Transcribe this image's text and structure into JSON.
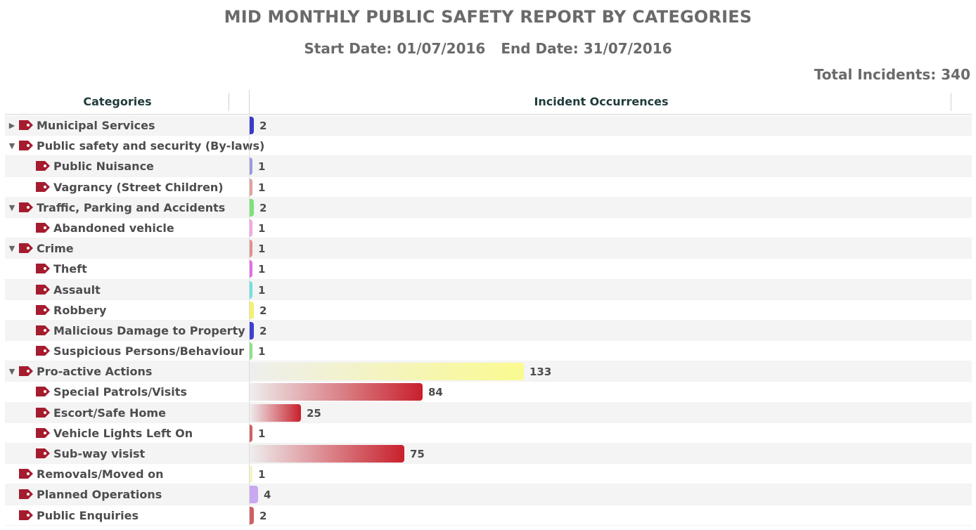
{
  "title": "MID MONTHLY PUBLIC SAFETY REPORT BY CATEGORIES",
  "start_date": "Start Date: 01/07/2016",
  "end_date": "End Date: 31/07/2016",
  "total": "Total Incidents: 340",
  "headers": {
    "categories": "Categories",
    "occurrences": "Incident Occurrences"
  },
  "chart_data": {
    "type": "bar",
    "orientation": "horizontal",
    "title": "MID MONTHLY PUBLIC SAFETY REPORT BY CATEGORIES",
    "xlabel": "Incident Occurrences",
    "ylabel": "Categories",
    "xlim": [
      0,
      133
    ],
    "grid": false,
    "rows": [
      {
        "label": "Municipal Services",
        "level": 0,
        "toggle": "collapsed",
        "value": 2,
        "color": "#3a3ac8",
        "gradient": false
      },
      {
        "label": "Public safety and security (By-laws)",
        "level": 0,
        "toggle": "expanded",
        "value": null,
        "color": "",
        "gradient": false
      },
      {
        "label": "Public Nuisance",
        "level": 1,
        "toggle": "",
        "value": 1,
        "color": "#9a9ae0",
        "gradient": false
      },
      {
        "label": "Vagrancy (Street Children)",
        "level": 1,
        "toggle": "",
        "value": 1,
        "color": "#e0a0a0",
        "gradient": false
      },
      {
        "label": "Traffic, Parking and Accidents",
        "level": 0,
        "toggle": "expanded",
        "value": 2,
        "color": "#7ee07a",
        "gradient": false
      },
      {
        "label": "Abandoned vehicle",
        "level": 1,
        "toggle": "",
        "value": 1,
        "color": "#f0a8e0",
        "gradient": false
      },
      {
        "label": "Crime",
        "level": 0,
        "toggle": "expanded",
        "value": 1,
        "color": "#e09090",
        "gradient": false
      },
      {
        "label": "Theft",
        "level": 1,
        "toggle": "",
        "value": 1,
        "color": "#e070e0",
        "gradient": false
      },
      {
        "label": "Assault",
        "level": 1,
        "toggle": "",
        "value": 1,
        "color": "#70e0e0",
        "gradient": false
      },
      {
        "label": "Robbery",
        "level": 1,
        "toggle": "",
        "value": 2,
        "color": "#f4f070",
        "gradient": false
      },
      {
        "label": "Malicious Damage to Property",
        "level": 1,
        "toggle": "",
        "value": 2,
        "color": "#4040d0",
        "gradient": false
      },
      {
        "label": "Suspicious Persons/Behaviour",
        "level": 1,
        "toggle": "",
        "value": 1,
        "color": "#90e090",
        "gradient": false
      },
      {
        "label": "Pro-active Actions",
        "level": 0,
        "toggle": "expanded",
        "value": 133,
        "color": "#fafa90",
        "gradient": true
      },
      {
        "label": "Special Patrols/Visits",
        "level": 1,
        "toggle": "",
        "value": 84,
        "color": "#c8202c",
        "gradient": true
      },
      {
        "label": "Escort/Safe Home",
        "level": 1,
        "toggle": "",
        "value": 25,
        "color": "#c8202c",
        "gradient": true
      },
      {
        "label": "Vehicle Lights Left On",
        "level": 1,
        "toggle": "",
        "value": 1,
        "color": "#d06060",
        "gradient": false
      },
      {
        "label": "Sub-way visist",
        "level": 1,
        "toggle": "",
        "value": 75,
        "color": "#c8202c",
        "gradient": true
      },
      {
        "label": "Removals/Moved on",
        "level": 0,
        "toggle": "",
        "value": 1,
        "color": "#f4f4c0",
        "gradient": false
      },
      {
        "label": "Planned Operations",
        "level": 0,
        "toggle": "",
        "value": 4,
        "color": "#c8a8f0",
        "gradient": false
      },
      {
        "label": "Public Enquiries",
        "level": 0,
        "toggle": "",
        "value": 2,
        "color": "#d06060",
        "gradient": false
      }
    ]
  },
  "colors": {
    "tag": "#a51c2e",
    "text": "#4d4d4d",
    "header_text": "#1f3a3a"
  },
  "icons": {
    "collapsed": "▶",
    "expanded": "▼",
    "tag": "tag-icon"
  }
}
